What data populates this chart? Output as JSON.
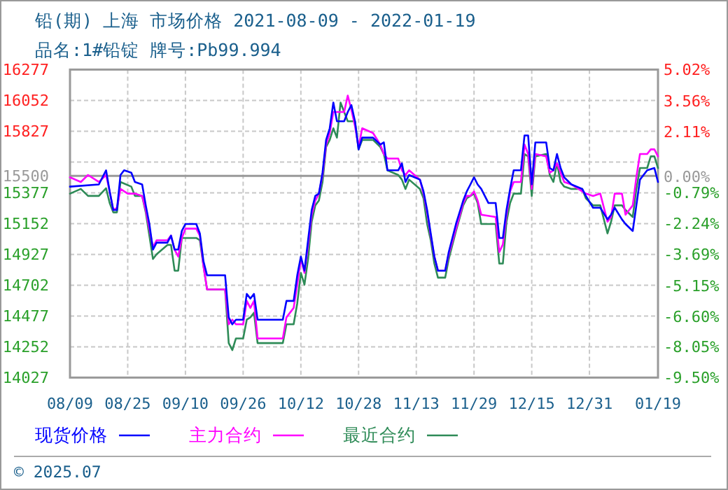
{
  "chart_data": {
    "type": "line",
    "title": "铅(期) 上海 市场价格 2021-08-09 - 2022-01-19",
    "subtitle": "品名:1#铅锭 牌号:Pb99.994",
    "annotations": [
      "© 2025.07"
    ],
    "xlim": [
      "2021-08-09",
      "2022-01-19"
    ],
    "xticks": [
      {
        "value": "2021-08-09",
        "label": "08/09"
      },
      {
        "value": "2021-08-25",
        "label": "08/25"
      },
      {
        "value": "2021-09-10",
        "label": "09/10"
      },
      {
        "value": "2021-09-26",
        "label": "09/26"
      },
      {
        "value": "2021-10-12",
        "label": "10/12"
      },
      {
        "value": "2021-10-28",
        "label": "10/28"
      },
      {
        "value": "2021-11-13",
        "label": "11/13"
      },
      {
        "value": "2021-11-29",
        "label": "11/29"
      },
      {
        "value": "2021-12-15",
        "label": "12/15"
      },
      {
        "value": "2021-12-31",
        "label": "12/31"
      },
      {
        "value": "2022-01-19",
        "label": "01/19"
      }
    ],
    "ylim": [
      14027,
      16277
    ],
    "yticks": [
      14027,
      14252,
      14477,
      14702,
      14927,
      15152,
      15377,
      15500,
      {
        "value": 15602,
        "label": null
      },
      15827,
      16052,
      16277
    ],
    "y2lim": [
      -9.5,
      5.02
    ],
    "y2ticks": [
      {
        "value": -9.5,
        "label": "-9.50%"
      },
      {
        "value": -8.05,
        "label": "-8.05%"
      },
      {
        "value": -6.6,
        "label": "-6.60%"
      },
      {
        "value": -5.15,
        "label": "-5.15%"
      },
      {
        "value": -3.69,
        "label": "-3.69%"
      },
      {
        "value": -2.24,
        "label": "-2.24%"
      },
      {
        "value": -0.79,
        "label": "-0.79%"
      },
      {
        "value": 0,
        "label": "0.00%"
      },
      {
        "value": 2.11,
        "label": "2.11%"
      },
      {
        "value": 3.56,
        "label": "3.56%"
      },
      {
        "value": 5.02,
        "label": "5.02%"
      }
    ],
    "ref_lines": [
      {
        "axis": "y",
        "value": 15500,
        "color": "#999999"
      }
    ],
    "grid": true,
    "legend": "bottom",
    "line_style": "solid",
    "marker": "none",
    "series": [
      {
        "name": "现货价格",
        "color": "#0000ff",
        "x": [
          "2021-08-09",
          "2021-08-17",
          "2021-08-19",
          "2021-08-20",
          "2021-08-21",
          "2021-08-22",
          "2021-08-23",
          "2021-08-24",
          "2021-08-26",
          "2021-08-27",
          "2021-08-29",
          "2021-08-30",
          "2021-08-31",
          "2021-09-01",
          "2021-09-02",
          "2021-09-05",
          "2021-09-06",
          "2021-09-07",
          "2021-09-08",
          "2021-09-09",
          "2021-09-10",
          "2021-09-13",
          "2021-09-14",
          "2021-09-15",
          "2021-09-16",
          "2021-09-21",
          "2021-09-22",
          "2021-09-23",
          "2021-09-24",
          "2021-09-26",
          "2021-09-27",
          "2021-09-28",
          "2021-09-29",
          "2021-09-30",
          "2021-10-07",
          "2021-10-08",
          "2021-10-10",
          "2021-10-11",
          "2021-10-12",
          "2021-10-13",
          "2021-10-14",
          "2021-10-15",
          "2021-10-16",
          "2021-10-17",
          "2021-10-18",
          "2021-10-19",
          "2021-10-20",
          "2021-10-21",
          "2021-10-22",
          "2021-10-24",
          "2021-10-25",
          "2021-10-26",
          "2021-10-27",
          "2021-10-28",
          "2021-10-29",
          "2021-11-01",
          "2021-11-03",
          "2021-11-04",
          "2021-11-05",
          "2021-11-08",
          "2021-11-09",
          "2021-11-10",
          "2021-11-11",
          "2021-11-14",
          "2021-11-15",
          "2021-11-16",
          "2021-11-17",
          "2021-11-18",
          "2021-11-19",
          "2021-11-21",
          "2021-11-22",
          "2021-11-24",
          "2021-11-26",
          "2021-11-27",
          "2021-11-28",
          "2021-11-29",
          "2021-11-30",
          "2021-12-01",
          "2021-12-03",
          "2021-12-05",
          "2021-12-06",
          "2021-12-07",
          "2021-12-08",
          "2021-12-09",
          "2021-12-10",
          "2021-12-12",
          "2021-12-13",
          "2021-12-14",
          "2021-12-15",
          "2021-12-16",
          "2021-12-19",
          "2021-12-20",
          "2021-12-21",
          "2021-12-22",
          "2021-12-23",
          "2021-12-24",
          "2021-12-26",
          "2021-12-29",
          "2021-12-30",
          "2022-01-01",
          "2022-01-03",
          "2022-01-05",
          "2022-01-06",
          "2022-01-07",
          "2022-01-09",
          "2022-01-10",
          "2022-01-12",
          "2022-01-13",
          "2022-01-14",
          "2022-01-16",
          "2022-01-18",
          "2022-01-19"
        ],
        "values": [
          15422,
          15438,
          15541,
          15387,
          15251,
          15251,
          15507,
          15541,
          15524,
          15456,
          15438,
          15285,
          15149,
          14962,
          15013,
          15013,
          15064,
          14962,
          14962,
          15098,
          15149,
          15149,
          15080,
          14876,
          14774,
          14774,
          14467,
          14416,
          14450,
          14450,
          14638,
          14604,
          14638,
          14450,
          14450,
          14587,
          14587,
          14774,
          14911,
          14808,
          15030,
          15251,
          15354,
          15371,
          15524,
          15763,
          15848,
          16036,
          15899,
          15899,
          15967,
          16018,
          15899,
          15694,
          15780,
          15780,
          15729,
          15745,
          15541,
          15541,
          15592,
          15456,
          15507,
          15473,
          15387,
          15251,
          15080,
          14911,
          14808,
          14808,
          14944,
          15149,
          15320,
          15387,
          15438,
          15490,
          15438,
          15405,
          15302,
          15302,
          15047,
          15047,
          15251,
          15405,
          15541,
          15541,
          15796,
          15796,
          15438,
          15745,
          15745,
          15558,
          15541,
          15660,
          15558,
          15490,
          15438,
          15405,
          15354,
          15268,
          15268,
          15183,
          15217,
          15268,
          15183,
          15149,
          15098,
          15285,
          15473,
          15541,
          15558,
          15456
        ]
      },
      {
        "name": "主力合约",
        "color": "#ff00ff",
        "x": [
          "2021-08-09",
          "2021-08-12",
          "2021-08-14",
          "2021-08-17",
          "2021-08-19",
          "2021-08-20",
          "2021-08-21",
          "2021-08-22",
          "2021-08-23",
          "2021-08-25",
          "2021-08-27",
          "2021-08-29",
          "2021-08-30",
          "2021-08-31",
          "2021-09-01",
          "2021-09-02",
          "2021-09-05",
          "2021-09-06",
          "2021-09-07",
          "2021-09-08",
          "2021-09-09",
          "2021-09-10",
          "2021-09-13",
          "2021-09-14",
          "2021-09-15",
          "2021-09-16",
          "2021-09-21",
          "2021-09-22",
          "2021-09-23",
          "2021-09-24",
          "2021-09-26",
          "2021-09-27",
          "2021-09-28",
          "2021-09-29",
          "2021-09-30",
          "2021-10-07",
          "2021-10-08",
          "2021-10-10",
          "2021-10-11",
          "2021-10-12",
          "2021-10-13",
          "2021-10-14",
          "2021-10-15",
          "2021-10-16",
          "2021-10-17",
          "2021-10-18",
          "2021-10-19",
          "2021-10-20",
          "2021-10-21",
          "2021-10-24",
          "2021-10-25",
          "2021-10-26",
          "2021-10-27",
          "2021-10-28",
          "2021-10-29",
          "2021-11-01",
          "2021-11-03",
          "2021-11-04",
          "2021-11-05",
          "2021-11-08",
          "2021-11-09",
          "2021-11-10",
          "2021-11-11",
          "2021-11-14",
          "2021-11-15",
          "2021-11-16",
          "2021-11-17",
          "2021-11-18",
          "2021-11-19",
          "2021-11-21",
          "2021-11-22",
          "2021-11-24",
          "2021-11-26",
          "2021-11-27",
          "2021-11-28",
          "2021-11-29",
          "2021-11-30",
          "2021-12-01",
          "2021-12-05",
          "2021-12-06",
          "2021-12-07",
          "2021-12-08",
          "2021-12-09",
          "2021-12-10",
          "2021-12-12",
          "2021-12-13",
          "2021-12-14",
          "2021-12-15",
          "2021-12-16",
          "2021-12-19",
          "2021-12-20",
          "2021-12-21",
          "2021-12-22",
          "2021-12-23",
          "2021-12-24",
          "2021-12-26",
          "2021-12-29",
          "2021-12-30",
          "2022-01-01",
          "2022-01-03",
          "2022-01-05",
          "2022-01-06",
          "2022-01-07",
          "2022-01-09",
          "2022-01-10",
          "2022-01-12",
          "2022-01-13",
          "2022-01-14",
          "2022-01-16",
          "2022-01-17",
          "2022-01-18",
          "2022-01-19"
        ],
        "values": [
          15490,
          15456,
          15507,
          15456,
          15507,
          15387,
          15251,
          15268,
          15405,
          15371,
          15371,
          15354,
          15251,
          15115,
          14979,
          15030,
          15030,
          15064,
          14962,
          14911,
          15047,
          15115,
          15115,
          15064,
          14842,
          14671,
          14671,
          14416,
          14450,
          14416,
          14416,
          14587,
          14536,
          14587,
          14313,
          14313,
          14467,
          14536,
          14706,
          14894,
          14792,
          14996,
          15217,
          15320,
          15371,
          15507,
          15729,
          15814,
          15967,
          15967,
          16087,
          15984,
          15865,
          15712,
          15848,
          15814,
          15729,
          15660,
          15627,
          15627,
          15541,
          15507,
          15541,
          15473,
          15371,
          15234,
          15064,
          14911,
          14808,
          14808,
          14928,
          15115,
          15302,
          15354,
          15354,
          15387,
          15320,
          15217,
          15200,
          14944,
          15000,
          15217,
          15387,
          15456,
          15456,
          15729,
          15660,
          15405,
          15660,
          15643,
          15524,
          15541,
          15592,
          15524,
          15456,
          15438,
          15387,
          15371,
          15354,
          15371,
          15166,
          15200,
          15371,
          15371,
          15217,
          15285,
          15490,
          15660,
          15660,
          15694,
          15694,
          15643
        ]
      },
      {
        "name": "最近合约",
        "color": "#2e8b57",
        "x": [
          "2021-08-09",
          "2021-08-12",
          "2021-08-14",
          "2021-08-17",
          "2021-08-19",
          "2021-08-20",
          "2021-08-21",
          "2021-08-22",
          "2021-08-23",
          "2021-08-26",
          "2021-08-27",
          "2021-08-29",
          "2021-08-30",
          "2021-08-31",
          "2021-09-01",
          "2021-09-02",
          "2021-09-05",
          "2021-09-06",
          "2021-09-07",
          "2021-09-08",
          "2021-09-09",
          "2021-09-13",
          "2021-09-14",
          "2021-09-15",
          "2021-09-16",
          "2021-09-21",
          "2021-09-22",
          "2021-09-23",
          "2021-09-24",
          "2021-09-26",
          "2021-09-27",
          "2021-09-28",
          "2021-09-29",
          "2021-09-30",
          "2021-10-07",
          "2021-10-08",
          "2021-10-10",
          "2021-10-11",
          "2021-10-12",
          "2021-10-13",
          "2021-10-14",
          "2021-10-15",
          "2021-10-16",
          "2021-10-17",
          "2021-10-18",
          "2021-10-19",
          "2021-10-20",
          "2021-10-21",
          "2021-10-22",
          "2021-10-23",
          "2021-10-25",
          "2021-10-27",
          "2021-10-28",
          "2021-10-29",
          "2021-11-01",
          "2021-11-03",
          "2021-11-04",
          "2021-11-05",
          "2021-11-08",
          "2021-11-09",
          "2021-11-10",
          "2021-11-11",
          "2021-11-14",
          "2021-11-15",
          "2021-11-16",
          "2021-11-17",
          "2021-11-18",
          "2021-11-19",
          "2021-11-21",
          "2021-11-22",
          "2021-11-24",
          "2021-11-26",
          "2021-11-27",
          "2021-11-29",
          "2021-11-30",
          "2021-12-01",
          "2021-12-05",
          "2021-12-06",
          "2021-12-07",
          "2021-12-08",
          "2021-12-09",
          "2021-12-10",
          "2021-12-12",
          "2021-12-13",
          "2021-12-14",
          "2021-12-15",
          "2021-12-16",
          "2021-12-19",
          "2021-12-20",
          "2021-12-21",
          "2021-12-22",
          "2021-12-23",
          "2021-12-24",
          "2021-12-26",
          "2021-12-29",
          "2021-12-30",
          "2022-01-01",
          "2022-01-03",
          "2022-01-05",
          "2022-01-06",
          "2022-01-07",
          "2022-01-09",
          "2022-01-10",
          "2022-01-12",
          "2022-01-13",
          "2022-01-14",
          "2022-01-16",
          "2022-01-17",
          "2022-01-18",
          "2022-01-19"
        ],
        "values": [
          15371,
          15405,
          15354,
          15354,
          15410,
          15302,
          15234,
          15234,
          15456,
          15422,
          15354,
          15354,
          15234,
          15064,
          14893,
          14928,
          14996,
          14996,
          14808,
          14808,
          15047,
          15047,
          15030,
          14842,
          14671,
          14671,
          14279,
          14228,
          14313,
          14313,
          14450,
          14467,
          14501,
          14279,
          14279,
          14416,
          14416,
          14570,
          14792,
          14706,
          14894,
          15166,
          15285,
          15320,
          15456,
          15712,
          15763,
          15848,
          15780,
          16036,
          15899,
          15899,
          15694,
          15763,
          15763,
          15712,
          15660,
          15541,
          15507,
          15473,
          15405,
          15473,
          15405,
          15337,
          15149,
          15030,
          14860,
          14757,
          14757,
          14894,
          15098,
          15285,
          15337,
          15371,
          15302,
          15149,
          15149,
          14860,
          14860,
          15166,
          15302,
          15371,
          15371,
          15660,
          15643,
          15354,
          15643,
          15660,
          15507,
          15456,
          15592,
          15456,
          15422,
          15405,
          15405,
          15337,
          15285,
          15285,
          15080,
          15166,
          15285,
          15285,
          15251,
          15200,
          15405,
          15558,
          15558,
          15643,
          15643,
          15558
        ]
      }
    ]
  }
}
